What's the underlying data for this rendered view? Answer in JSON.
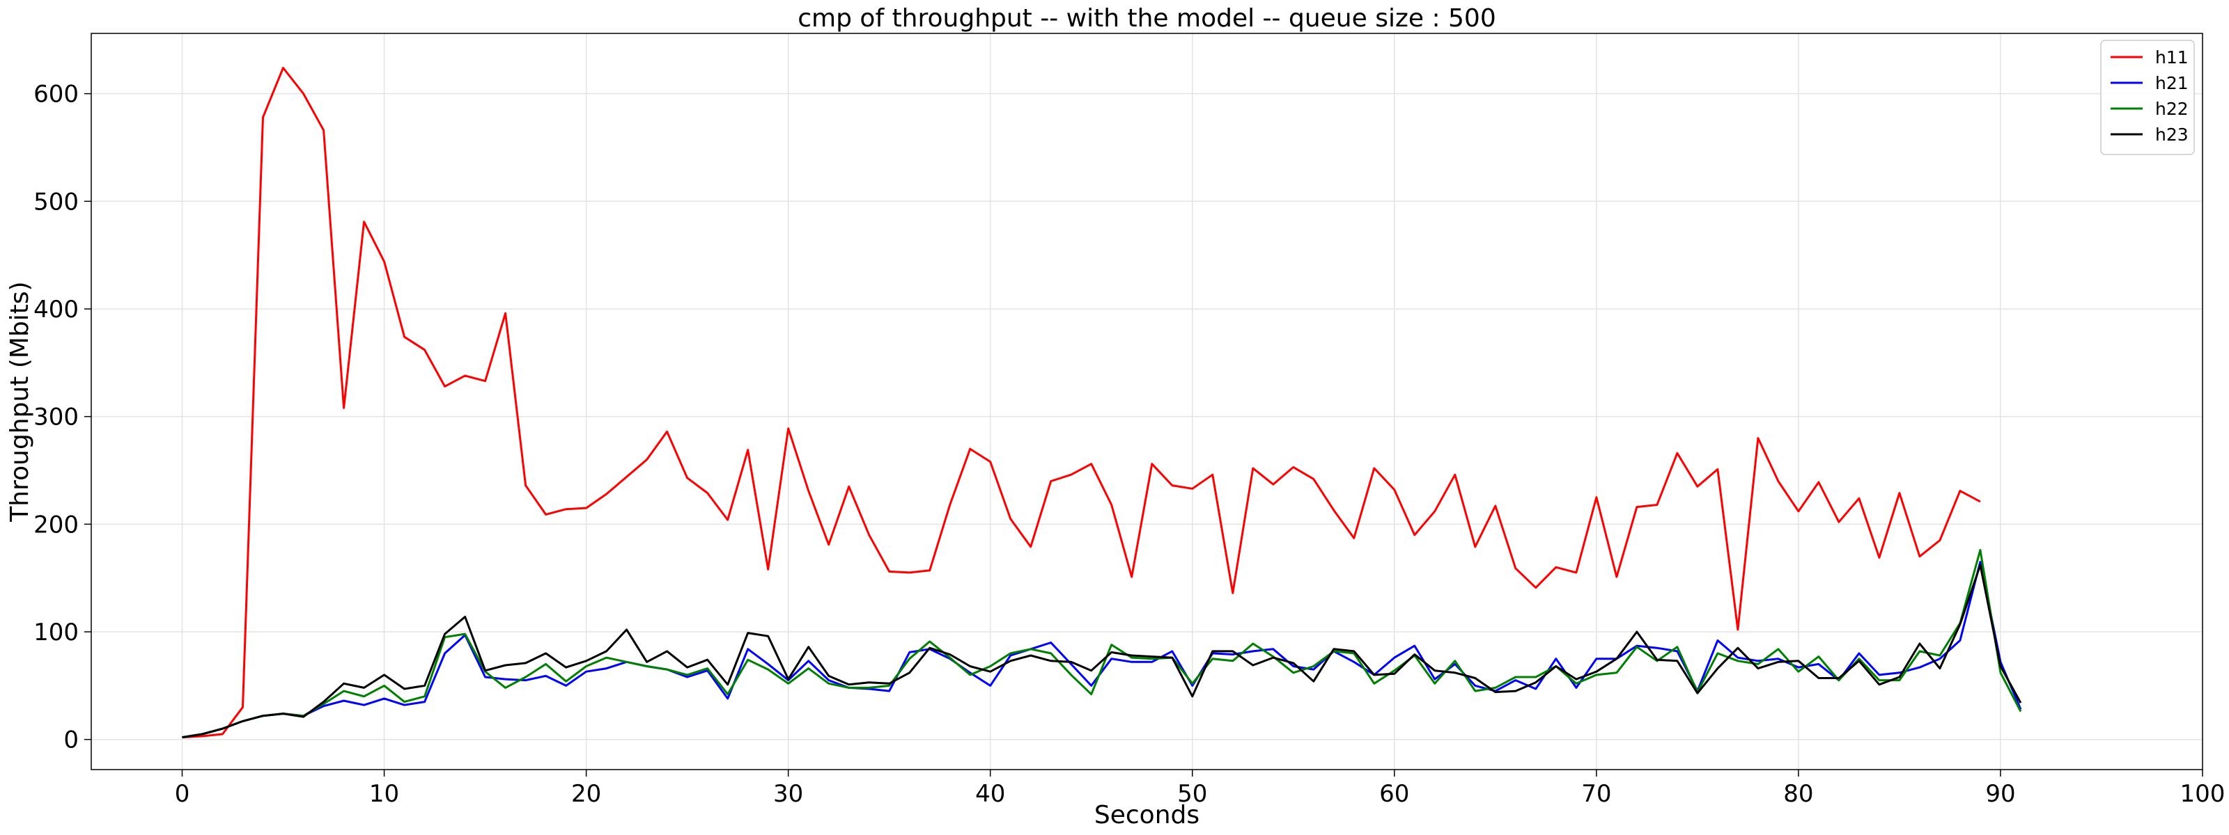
{
  "chart_data": {
    "type": "line",
    "title": "cmp of throughput -- with the model -- queue size : 500",
    "xlabel": "Seconds",
    "ylabel": "Throughput (Mbits)",
    "xlim": [
      -4.5,
      100
    ],
    "ylim": [
      -28,
      656
    ],
    "xticks": [
      0,
      10,
      20,
      30,
      40,
      50,
      60,
      70,
      80,
      90,
      100
    ],
    "yticks": [
      0,
      100,
      200,
      300,
      400,
      500,
      600
    ],
    "grid": true,
    "legend_position": "top-right",
    "x": [
      0,
      1,
      2,
      3,
      4,
      5,
      6,
      7,
      8,
      9,
      10,
      11,
      12,
      13,
      14,
      15,
      16,
      17,
      18,
      19,
      20,
      21,
      22,
      23,
      24,
      25,
      26,
      27,
      28,
      29,
      30,
      31,
      32,
      33,
      34,
      35,
      36,
      37,
      38,
      39,
      40,
      41,
      42,
      43,
      44,
      45,
      46,
      47,
      48,
      49,
      50,
      51,
      52,
      53,
      54,
      55,
      56,
      57,
      58,
      59,
      60,
      61,
      62,
      63,
      64,
      65,
      66,
      67,
      68,
      69,
      70,
      71,
      72,
      73,
      74,
      75,
      76,
      77,
      78,
      79,
      80,
      81,
      82,
      83,
      84,
      85,
      86,
      87,
      88,
      89,
      90,
      91
    ],
    "series": [
      {
        "name": "h11",
        "color": "#ff0000",
        "values": [
          2,
          3,
          5,
          30,
          578,
          624,
          600,
          566,
          308,
          481,
          444,
          374,
          362,
          328,
          338,
          333,
          396,
          236,
          209,
          214,
          215,
          228,
          244,
          260,
          286,
          243,
          229,
          204,
          269,
          158,
          289,
          231,
          181,
          235,
          190,
          156,
          155,
          157,
          218,
          270,
          258,
          205,
          179,
          240,
          246,
          256,
          218,
          151,
          256,
          236,
          233,
          246,
          136,
          252,
          237,
          253,
          242,
          213,
          187,
          252,
          232,
          190,
          212,
          246,
          179,
          217,
          159,
          141,
          160,
          155,
          225,
          151,
          216,
          218,
          266,
          235,
          251,
          102,
          280,
          240,
          212,
          239,
          202,
          224,
          169,
          229,
          170,
          185,
          231,
          221,
          null,
          null
        ]
      },
      {
        "name": "h21",
        "color": "#0000ff",
        "values": [
          2,
          5,
          10,
          17,
          22,
          24,
          22,
          31,
          36,
          32,
          38,
          32,
          35,
          80,
          97,
          58,
          56,
          55,
          59,
          50,
          63,
          66,
          72,
          68,
          65,
          58,
          64,
          38,
          84,
          70,
          55,
          73,
          55,
          48,
          47,
          45,
          81,
          84,
          75,
          62,
          50,
          78,
          84,
          90,
          70,
          50,
          75,
          72,
          72,
          82,
          50,
          80,
          79,
          82,
          84,
          68,
          65,
          82,
          72,
          60,
          76,
          87,
          56,
          70,
          50,
          45,
          55,
          47,
          75,
          48,
          75,
          75,
          87,
          85,
          82,
          45,
          92,
          76,
          73,
          75,
          67,
          70,
          55,
          80,
          60,
          62,
          67,
          75,
          92,
          165,
          72,
          28
        ]
      },
      {
        "name": "h22",
        "color": "#008000",
        "values": [
          2,
          5,
          10,
          17,
          22,
          24,
          22,
          33,
          45,
          40,
          50,
          35,
          40,
          95,
          98,
          63,
          48,
          58,
          70,
          54,
          68,
          76,
          72,
          68,
          65,
          60,
          66,
          42,
          74,
          65,
          52,
          66,
          52,
          48,
          48,
          50,
          75,
          91,
          76,
          60,
          68,
          80,
          84,
          80,
          60,
          42,
          88,
          76,
          75,
          76,
          52,
          75,
          73,
          89,
          77,
          62,
          68,
          82,
          80,
          52,
          64,
          78,
          52,
          73,
          45,
          48,
          58,
          58,
          68,
          52,
          60,
          62,
          86,
          73,
          86,
          44,
          80,
          73,
          70,
          84,
          63,
          77,
          55,
          75,
          55,
          55,
          82,
          78,
          108,
          176,
          62,
          26
        ]
      },
      {
        "name": "h23",
        "color": "#000000",
        "values": [
          2,
          5,
          10,
          17,
          22,
          24,
          21,
          35,
          52,
          48,
          60,
          47,
          50,
          98,
          114,
          64,
          69,
          71,
          80,
          67,
          73,
          82,
          102,
          72,
          82,
          67,
          74,
          51,
          99,
          96,
          56,
          86,
          59,
          51,
          53,
          52,
          62,
          85,
          79,
          68,
          63,
          73,
          78,
          73,
          72,
          64,
          81,
          78,
          77,
          76,
          40,
          82,
          82,
          69,
          76,
          71,
          54,
          84,
          82,
          60,
          61,
          79,
          64,
          62,
          57,
          44,
          45,
          53,
          68,
          56,
          63,
          75,
          100,
          74,
          73,
          43,
          66,
          85,
          66,
          72,
          73,
          57,
          57,
          73,
          51,
          58,
          89,
          66,
          107,
          162,
          68,
          34
        ]
      }
    ]
  }
}
